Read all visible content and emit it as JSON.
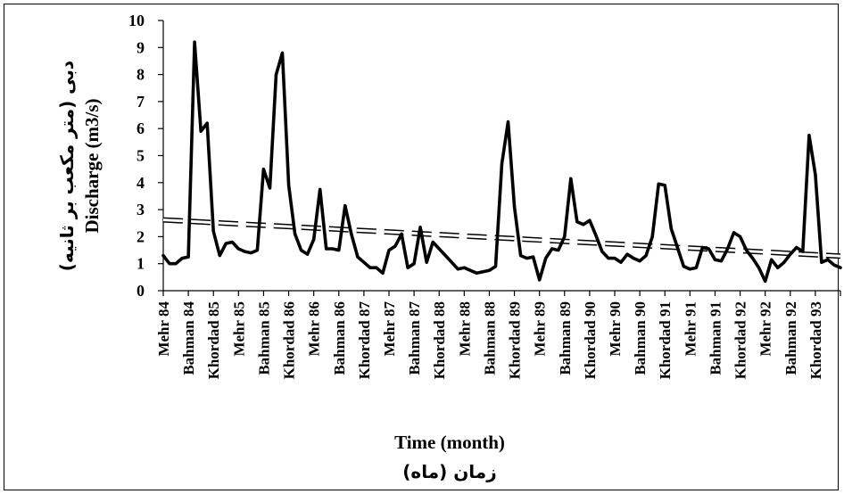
{
  "chart_data": {
    "type": "line",
    "x_title": "Time (month)",
    "x_title_fa": "زمان (ماه)",
    "y_title": "Discharge (m3/s)",
    "y_title_fa": "دبی (متر مکعب بر ثانیه)",
    "ylim": [
      0,
      10
    ],
    "y_ticks": [
      0,
      1,
      2,
      3,
      4,
      5,
      6,
      7,
      8,
      9,
      10
    ],
    "x_tick_labels": [
      "Mehr 84",
      "Bahman 84",
      "Khordad 85",
      "Mehr 85",
      "Bahman 85",
      "Khordad 86",
      "Mehr 86",
      "Bahman 86",
      "Khordad 87",
      "Mehr 87",
      "Bahman 87",
      "Khordad 88",
      "Mehr 88",
      "Bahman 88",
      "Khordad 89",
      "Mehr 89",
      "Bahman 89",
      "Khordad 90",
      "Mehr 90",
      "Bahman 90",
      "Khordad 91",
      "Mehr 91",
      "Bahman 91",
      "Khordad 92",
      "Mehr 92",
      "Bahman 92",
      "Khordad 93"
    ],
    "x_tick_step_months": 4,
    "series": [
      {
        "style": "solid",
        "color": "#000000",
        "values": [
          1.3,
          1.0,
          1.0,
          1.2,
          1.25,
          9.2,
          5.9,
          6.2,
          2.2,
          1.3,
          1.75,
          1.8,
          1.55,
          1.45,
          1.4,
          1.5,
          4.5,
          3.8,
          8.0,
          8.8,
          3.9,
          2.1,
          1.5,
          1.35,
          1.9,
          3.75,
          1.55,
          1.55,
          1.5,
          3.15,
          2.1,
          1.25,
          1.05,
          0.85,
          0.85,
          0.65,
          1.5,
          1.65,
          2.1,
          0.85,
          1.0,
          2.35,
          1.05,
          1.8,
          1.55,
          1.3,
          1.05,
          0.8,
          0.85,
          0.75,
          0.65,
          0.7,
          0.75,
          0.9,
          4.7,
          6.25,
          3.1,
          1.3,
          1.2,
          1.25,
          0.4,
          1.2,
          1.55,
          1.5,
          2.0,
          4.15,
          2.55,
          2.45,
          2.6,
          2.05,
          1.45,
          1.2,
          1.2,
          1.05,
          1.35,
          1.2,
          1.1,
          1.3,
          2.0,
          3.95,
          3.9,
          2.3,
          1.6,
          0.9,
          0.8,
          0.85,
          1.6,
          1.55,
          1.15,
          1.1,
          1.55,
          2.15,
          2.0,
          1.5,
          1.2,
          0.85,
          0.35,
          1.15,
          0.85,
          1.05,
          1.35,
          1.6,
          1.45,
          5.75,
          4.3,
          1.05,
          1.15,
          0.95,
          0.85
        ]
      },
      {
        "style": "dashed-trend",
        "color": "#000000",
        "start": 2.62,
        "end": 1.28
      }
    ]
  }
}
